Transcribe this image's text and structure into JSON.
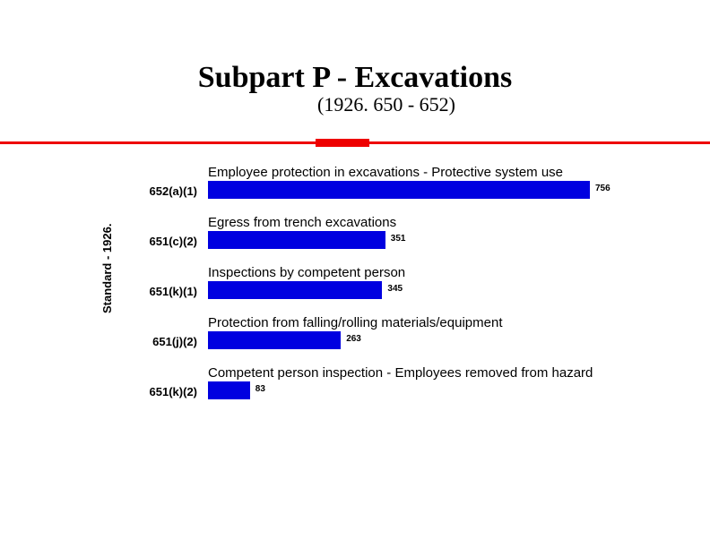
{
  "title": "Subpart P - Excavations",
  "subtitle": "(1926. 650 - 652)",
  "yAxisLabel": "Standard - 1926.",
  "chart": {
    "type": "bar",
    "orientation": "horizontal",
    "barColor": "#0000e0",
    "background": "#ffffff",
    "valueFontSize": 10,
    "categoryFontSize": 13,
    "descFontSize": 15,
    "maxValue": 756,
    "maxBarWidthPx": 426,
    "rows": [
      {
        "category": "652(a)(1)",
        "desc": "Employee protection in excavations - Protective system use",
        "value": 756
      },
      {
        "category": "651(c)(2)",
        "desc": "Egress from trench excavations",
        "value": 351
      },
      {
        "category": "651(k)(1)",
        "desc": "Inspections by competent person",
        "value": 345
      },
      {
        "category": "651(j)(2)",
        "desc": "Protection from falling/rolling materials/equipment",
        "value": 263
      },
      {
        "category": "651(k)(2)",
        "desc": "Competent person inspection - Employees removed from hazard",
        "value": 83
      }
    ]
  }
}
